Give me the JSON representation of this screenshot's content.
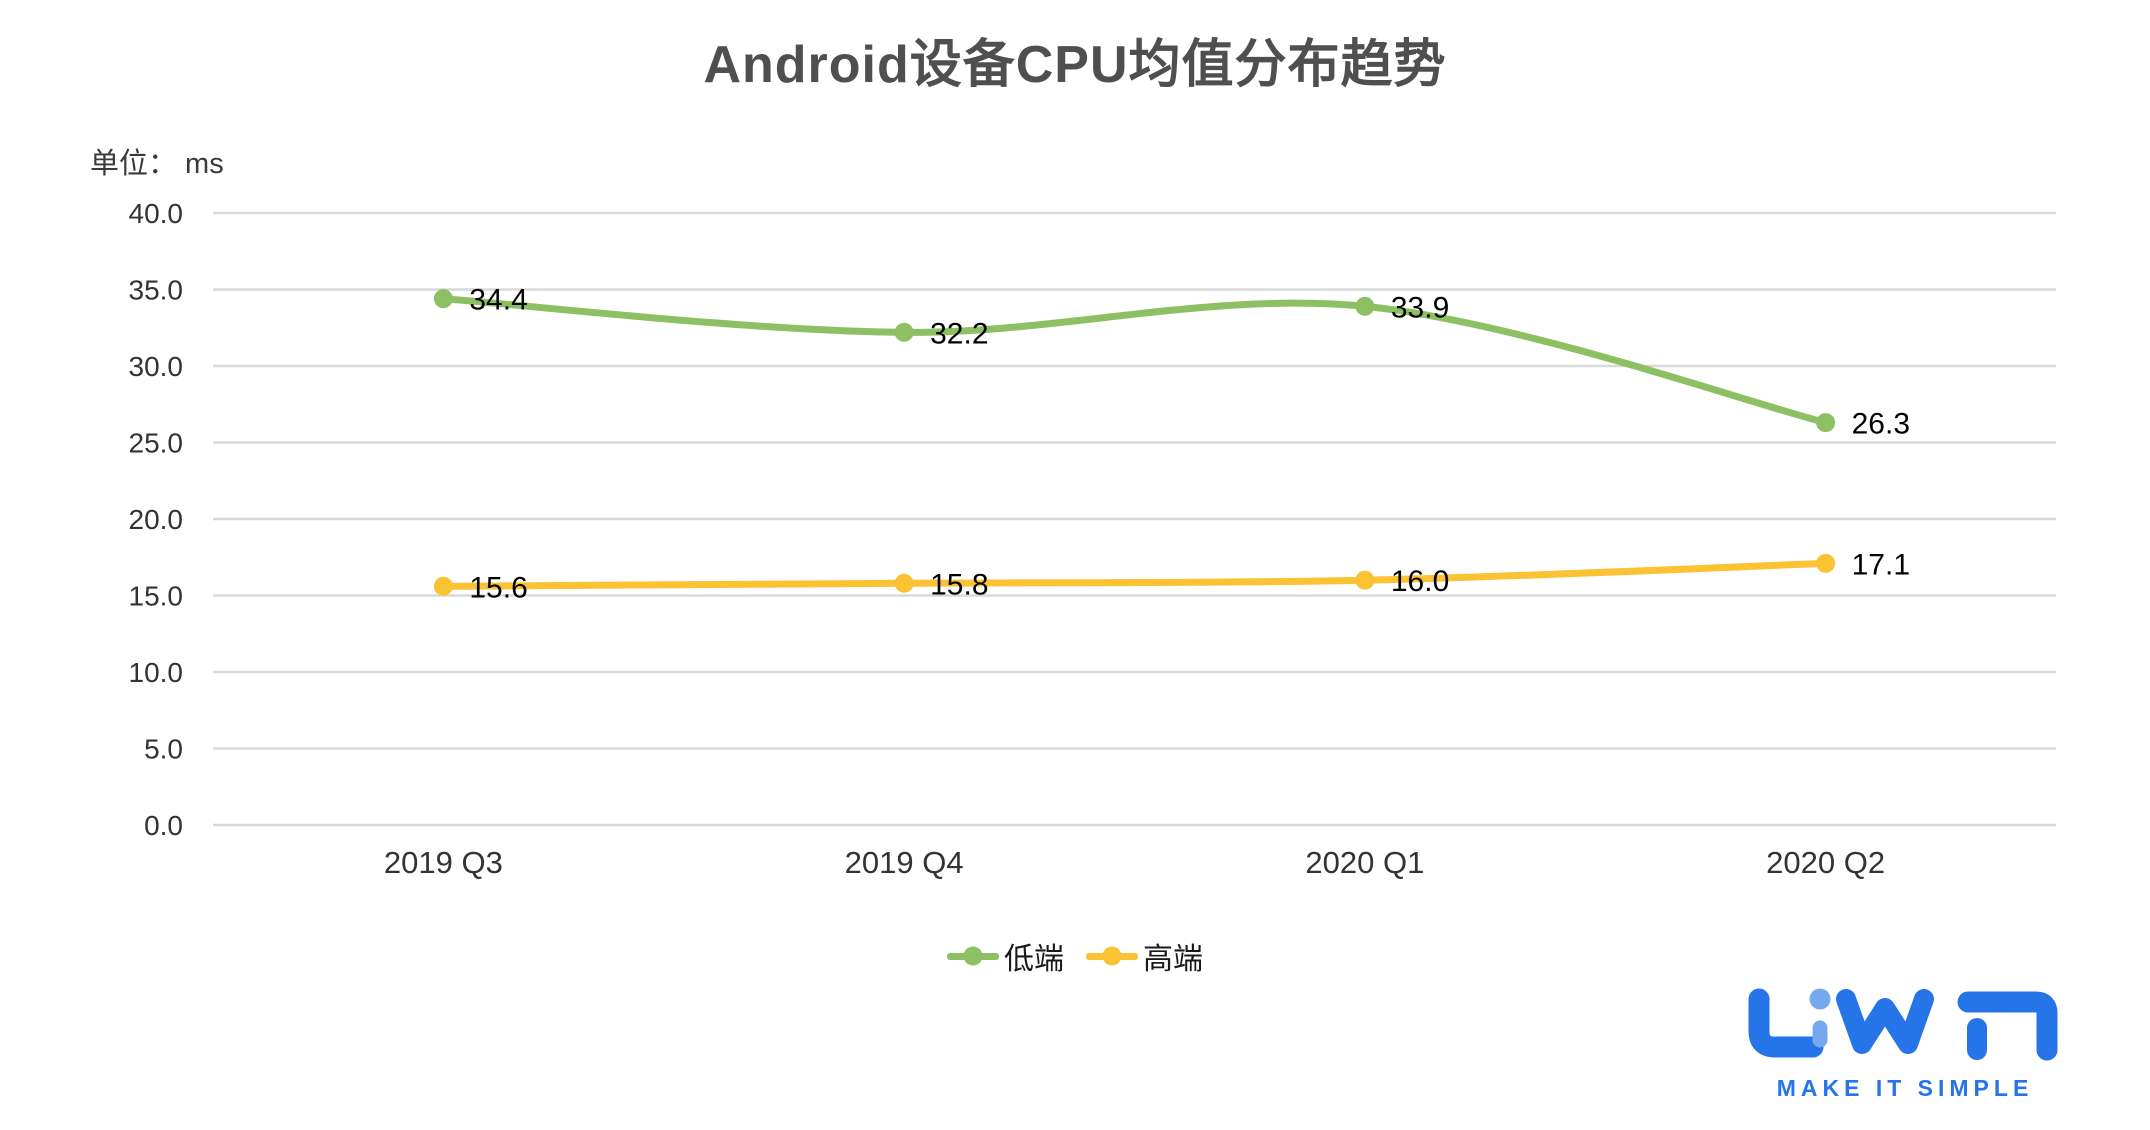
{
  "title": "Android设备CPU均值分布趋势",
  "unit_label": "单位： ms",
  "chart_data": {
    "type": "line",
    "smooth": true,
    "title": "Android设备CPU均值分布趋势",
    "xlabel": "",
    "ylabel": "单位： ms",
    "categories": [
      "2019 Q3",
      "2019 Q4",
      "2020 Q1",
      "2020 Q2"
    ],
    "series": [
      {
        "name": "低端",
        "color": "#8DC063",
        "values": [
          34.4,
          32.2,
          33.9,
          26.3
        ]
      },
      {
        "name": "高端",
        "color": "#FBC233",
        "values": [
          15.6,
          15.8,
          16.0,
          17.1
        ]
      }
    ],
    "ylim": [
      0,
      40
    ],
    "ytick_step": 5,
    "ytick_labels": [
      "0.0",
      "5.0",
      "10.0",
      "15.0",
      "20.0",
      "25.0",
      "30.0",
      "35.0",
      "40.0"
    ],
    "grid": true,
    "gridline_color": "#D9D9D9",
    "legend_position": "bottom",
    "data_labels": true
  },
  "text_colors": {
    "title": "#4F4F4F",
    "axis": "#333333",
    "data_label": "#000000"
  },
  "brand": {
    "name": "LiWA",
    "tagline": "MAKE IT SIMPLE",
    "color": "#2575E9",
    "light_color": "#74A9F0"
  }
}
